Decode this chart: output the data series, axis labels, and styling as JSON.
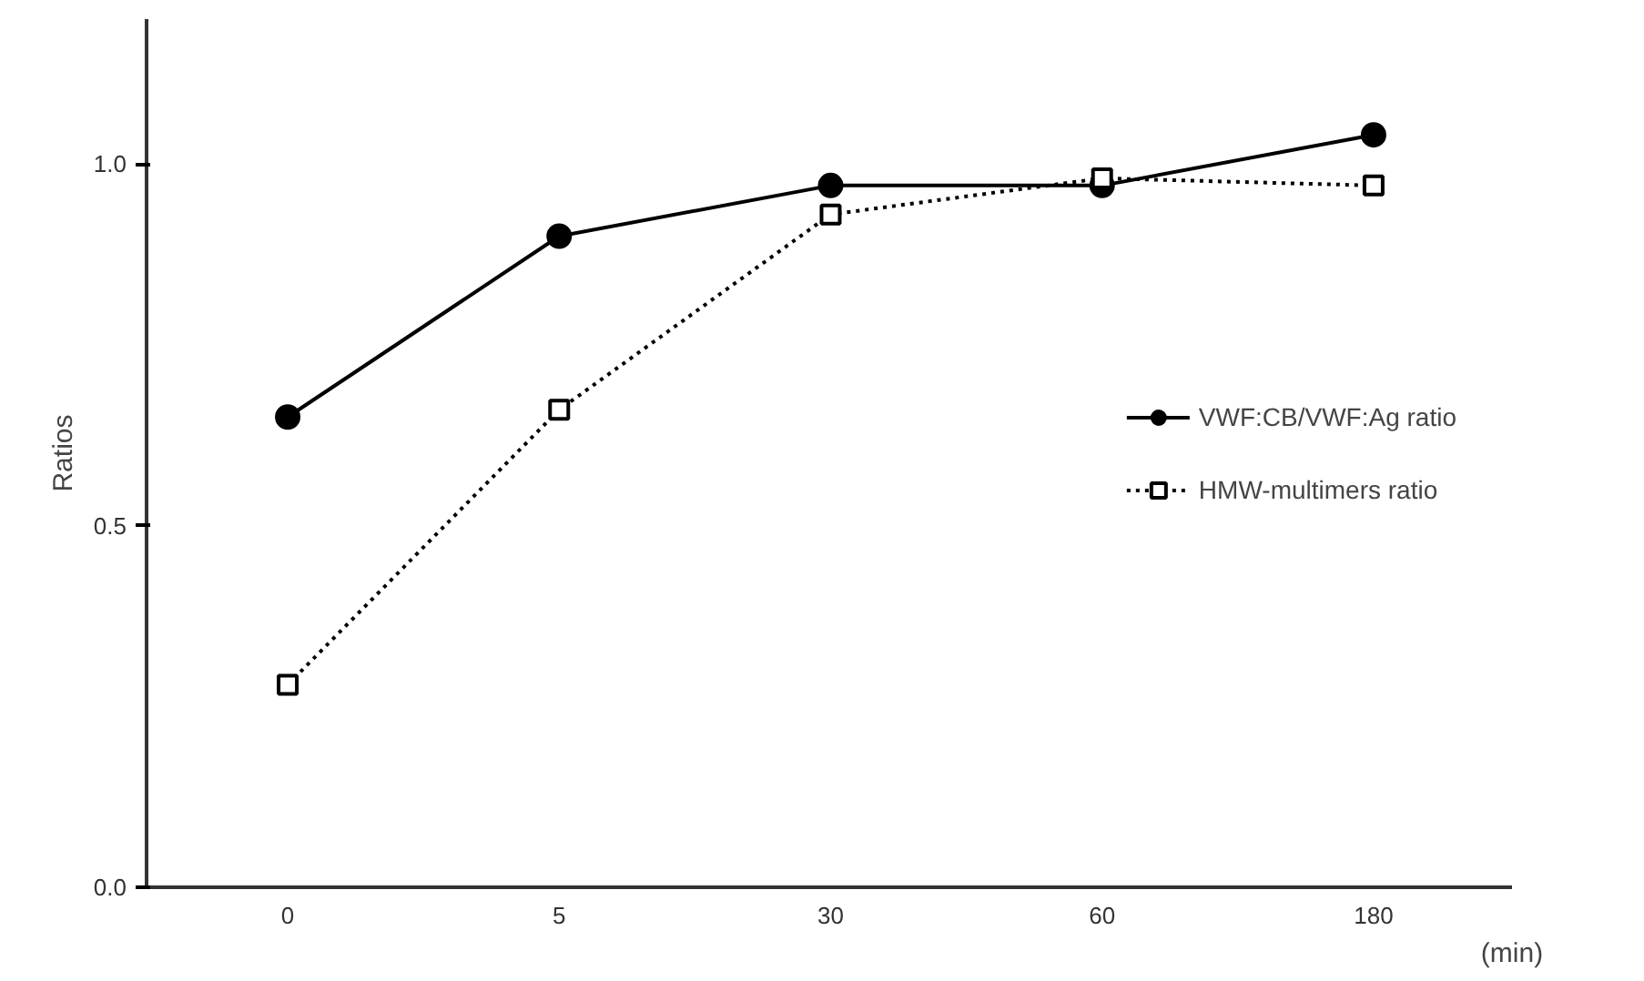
{
  "chart_data": {
    "type": "line",
    "xlabel": "(min)",
    "ylabel": "Ratios",
    "categories": [
      "0",
      "5",
      "30",
      "60",
      "180"
    ],
    "series": [
      {
        "name": "VWF:CB/VWF:Ag ratio",
        "color": "#000000",
        "marker": "circle",
        "line_style": "solid",
        "values": [
          0.65,
          0.9,
          0.97,
          0.97,
          1.04
        ]
      },
      {
        "name": "HMW-multimers ratio",
        "color": "#000000",
        "marker": "square",
        "line_style": "dotted",
        "values": [
          0.28,
          0.66,
          0.93,
          0.98,
          0.97
        ]
      }
    ],
    "ylim": [
      0,
      1.2
    ],
    "yticks": [
      {
        "value": 0,
        "label": "0.0"
      },
      {
        "value": 0.5,
        "label": "0.5"
      },
      {
        "value": 1.0,
        "label": "1.0"
      }
    ],
    "grid": false,
    "legend": "right"
  }
}
